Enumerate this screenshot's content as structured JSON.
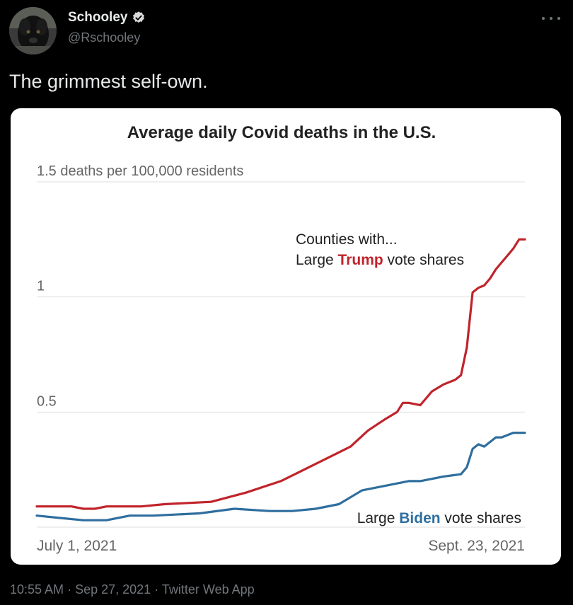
{
  "tweet": {
    "author": {
      "display_name": "Schooley",
      "handle": "@Rschooley",
      "verified": true
    },
    "text": "The grimmest self-own.",
    "time": "10:55 AM",
    "separator": "·",
    "date": "Sep 27, 2021",
    "source": "Twitter Web App"
  },
  "colors": {
    "background": "#000000",
    "text_primary": "#e7e9ea",
    "text_secondary": "#71767b",
    "verified_badge": "#d9d9d9",
    "trump_series": "#c0242b",
    "biden_series": "#2f6e9e"
  },
  "chart_data": {
    "type": "line",
    "title": "Average daily Covid deaths in the U.S.",
    "ylabel": "deaths per 100,000 residents",
    "ylim": [
      0,
      1.5
    ],
    "y_ticks": [
      {
        "value": 1.5,
        "label": "1.5 deaths per 100,000 residents"
      },
      {
        "value": 1,
        "label": "1"
      },
      {
        "value": 0.5,
        "label": "0.5"
      }
    ],
    "x_range": [
      "2021-07-01",
      "2021-09-23"
    ],
    "x_tick_labels": [
      "July 1, 2021",
      "Sept. 23, 2021"
    ],
    "annotations": {
      "trump_prefix": "Counties with...",
      "trump_label_before": "Large ",
      "trump_label_highlight": "Trump",
      "trump_label_after": " vote shares",
      "biden_label_before": "Large ",
      "biden_label_highlight": "Biden",
      "biden_label_after": " vote shares"
    },
    "series": [
      {
        "name": "Large Trump vote shares",
        "color": "#c0242b",
        "x": [
          0,
          6,
          8,
          10,
          12,
          18,
          22,
          30,
          36,
          42,
          46,
          50,
          54,
          57,
          60,
          62,
          63,
          64,
          66,
          68,
          70,
          71,
          72,
          73,
          74,
          75,
          76,
          77,
          78,
          79,
          80,
          81,
          82,
          83,
          84
        ],
        "y": [
          0.09,
          0.09,
          0.08,
          0.08,
          0.09,
          0.09,
          0.1,
          0.11,
          0.15,
          0.2,
          0.25,
          0.3,
          0.35,
          0.42,
          0.47,
          0.5,
          0.54,
          0.54,
          0.53,
          0.59,
          0.62,
          0.63,
          0.64,
          0.66,
          0.78,
          1.02,
          1.04,
          1.05,
          1.08,
          1.12,
          1.15,
          1.18,
          1.21,
          1.25,
          1.25
        ]
      },
      {
        "name": "Large Biden vote shares",
        "color": "#2f6e9e",
        "x": [
          0,
          4,
          8,
          12,
          16,
          20,
          28,
          34,
          40,
          44,
          48,
          52,
          56,
          60,
          62,
          64,
          66,
          68,
          70,
          73,
          74,
          75,
          76,
          77,
          78,
          79,
          80,
          81,
          82,
          84
        ],
        "y": [
          0.05,
          0.04,
          0.03,
          0.03,
          0.05,
          0.05,
          0.06,
          0.08,
          0.07,
          0.07,
          0.08,
          0.1,
          0.16,
          0.18,
          0.19,
          0.2,
          0.2,
          0.21,
          0.22,
          0.23,
          0.26,
          0.34,
          0.36,
          0.35,
          0.37,
          0.39,
          0.39,
          0.4,
          0.41,
          0.41
        ]
      }
    ]
  }
}
